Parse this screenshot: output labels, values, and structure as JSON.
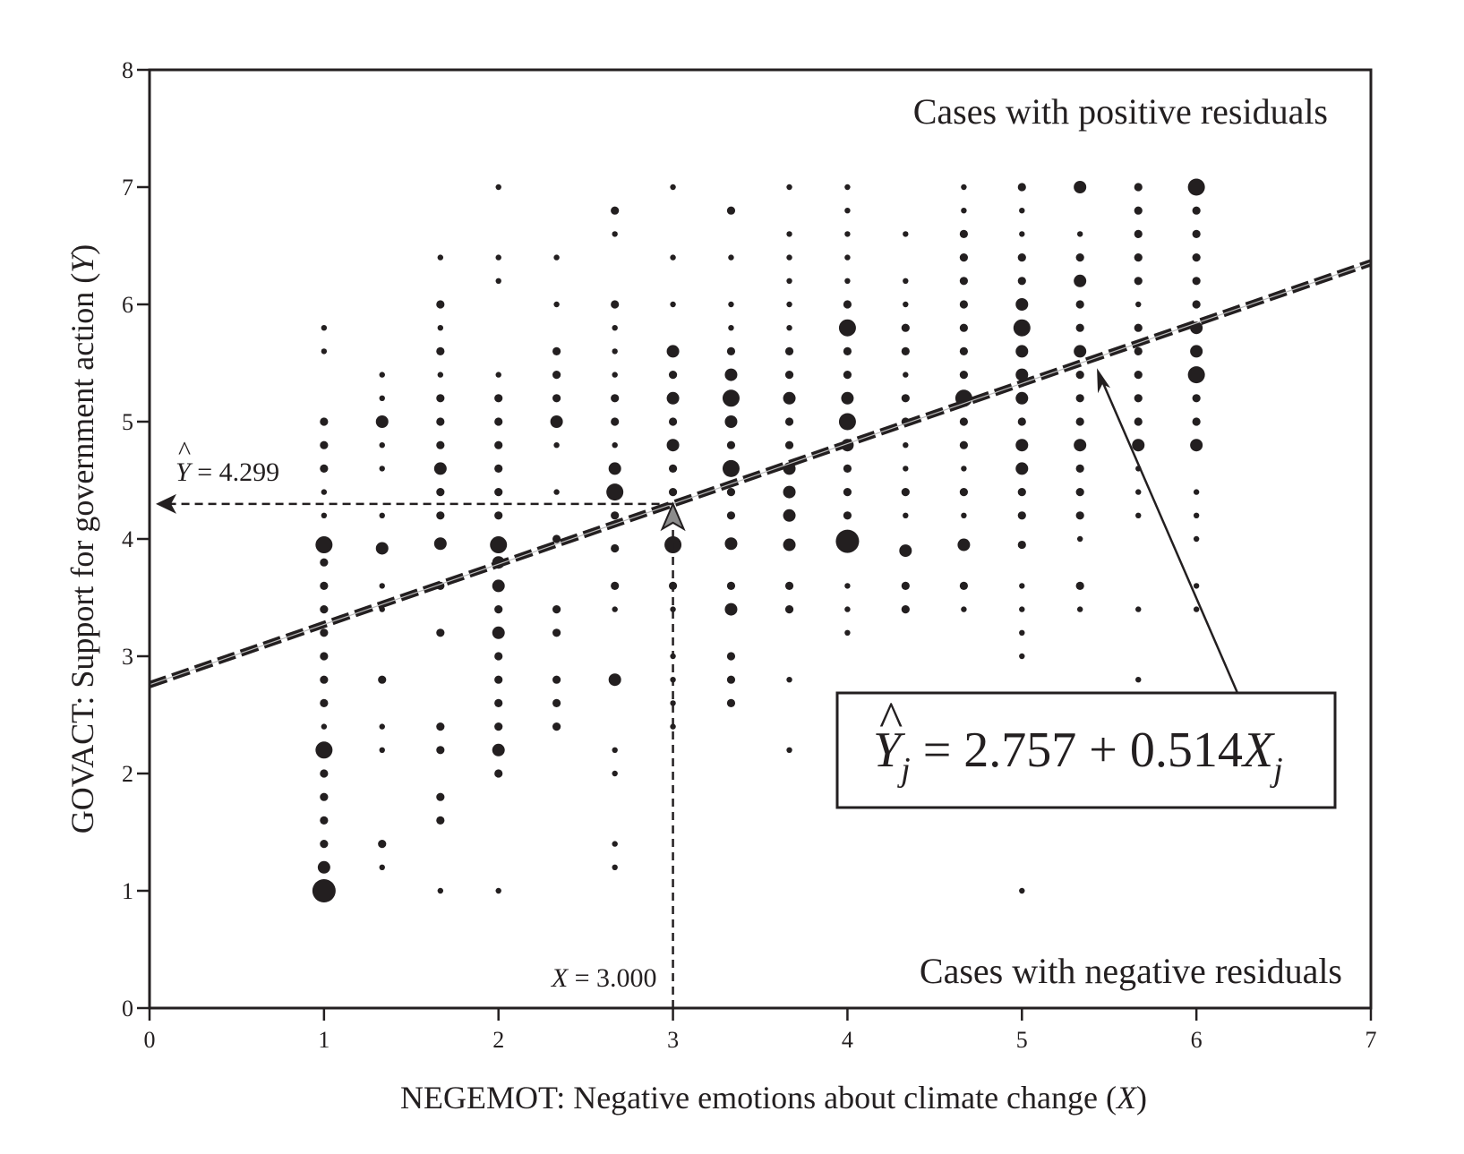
{
  "chart_data": {
    "type": "scatter",
    "xlabel": {
      "main": "NEGEMOT: Negative emotions about climate change (",
      "var": "X",
      "close": ")"
    },
    "ylabel": {
      "main": "GOVACT: Support for government action (",
      "var": "Y",
      "close": ")"
    },
    "xlim": [
      0,
      7
    ],
    "ylim": [
      0,
      8
    ],
    "xticks": [
      "0",
      "1",
      "2",
      "3",
      "4",
      "5",
      "6",
      "7"
    ],
    "yticks": [
      "0",
      "1",
      "2",
      "3",
      "4",
      "5",
      "6",
      "7",
      "8"
    ],
    "grid": false,
    "regression": {
      "intercept": 2.757,
      "slope": 0.514,
      "equation": {
        "yhat": "Y",
        "sub": "j",
        "eq": " = 2.757 + 0.514",
        "xvar": "X",
        "xsub": "j"
      }
    },
    "annotations": {
      "positive": "Cases with positive residuals",
      "negative": "Cases with negative residuals",
      "yhat_label": {
        "var": "Y",
        "text": " = 4.299",
        "value": 4.299
      },
      "x_label": {
        "var": "X",
        "text": " = 3.000",
        "value": 3.0
      }
    },
    "point_size_note": "marker size proportional to number of cases (1 = small ... 5 = largest)",
    "columns": [
      {
        "x": 1.0,
        "points": [
          [
            5.8,
            1
          ],
          [
            5.6,
            1
          ],
          [
            5.0,
            2
          ],
          [
            4.8,
            2
          ],
          [
            4.6,
            2
          ],
          [
            4.4,
            1
          ],
          [
            4.2,
            1
          ],
          [
            3.95,
            4
          ],
          [
            3.8,
            2
          ],
          [
            3.6,
            2
          ],
          [
            3.4,
            2
          ],
          [
            3.2,
            2
          ],
          [
            3.0,
            2
          ],
          [
            2.8,
            2
          ],
          [
            2.6,
            2
          ],
          [
            2.4,
            1
          ],
          [
            2.2,
            4
          ],
          [
            2.0,
            2
          ],
          [
            1.8,
            2
          ],
          [
            1.6,
            2
          ],
          [
            1.4,
            2
          ],
          [
            1.2,
            3
          ],
          [
            1.0,
            5
          ]
        ]
      },
      {
        "x": 1.333,
        "points": [
          [
            5.4,
            1
          ],
          [
            5.2,
            1
          ],
          [
            5.0,
            3
          ],
          [
            4.8,
            1
          ],
          [
            4.6,
            1
          ],
          [
            4.2,
            1
          ],
          [
            3.92,
            3
          ],
          [
            3.6,
            1
          ],
          [
            3.4,
            1
          ],
          [
            2.8,
            2
          ],
          [
            2.4,
            1
          ],
          [
            2.2,
            1
          ],
          [
            1.4,
            2
          ],
          [
            1.2,
            1
          ]
        ]
      },
      {
        "x": 1.667,
        "points": [
          [
            6.4,
            1
          ],
          [
            6.0,
            2
          ],
          [
            5.8,
            1
          ],
          [
            5.6,
            2
          ],
          [
            5.4,
            1
          ],
          [
            5.2,
            2
          ],
          [
            5.0,
            2
          ],
          [
            4.8,
            2
          ],
          [
            4.6,
            3
          ],
          [
            4.4,
            2
          ],
          [
            4.2,
            2
          ],
          [
            3.96,
            3
          ],
          [
            3.6,
            2
          ],
          [
            3.2,
            2
          ],
          [
            2.4,
            2
          ],
          [
            2.2,
            2
          ],
          [
            1.8,
            2
          ],
          [
            1.6,
            2
          ],
          [
            1.0,
            1
          ]
        ]
      },
      {
        "x": 2.0,
        "points": [
          [
            7.0,
            1
          ],
          [
            6.4,
            1
          ],
          [
            6.2,
            1
          ],
          [
            5.4,
            1
          ],
          [
            5.2,
            2
          ],
          [
            5.0,
            2
          ],
          [
            4.8,
            2
          ],
          [
            4.6,
            2
          ],
          [
            4.4,
            2
          ],
          [
            4.2,
            2
          ],
          [
            3.95,
            4
          ],
          [
            3.8,
            3
          ],
          [
            3.6,
            3
          ],
          [
            3.4,
            2
          ],
          [
            3.2,
            3
          ],
          [
            3.0,
            2
          ],
          [
            2.8,
            2
          ],
          [
            2.6,
            2
          ],
          [
            2.4,
            2
          ],
          [
            2.2,
            3
          ],
          [
            2.0,
            2
          ],
          [
            1.0,
            1
          ]
        ]
      },
      {
        "x": 2.333,
        "points": [
          [
            6.4,
            1
          ],
          [
            6.0,
            1
          ],
          [
            5.6,
            2
          ],
          [
            5.4,
            2
          ],
          [
            5.2,
            2
          ],
          [
            5.0,
            3
          ],
          [
            4.8,
            1
          ],
          [
            4.4,
            1
          ],
          [
            4.0,
            2
          ],
          [
            3.4,
            2
          ],
          [
            3.2,
            2
          ],
          [
            2.8,
            2
          ],
          [
            2.6,
            2
          ],
          [
            2.4,
            2
          ]
        ]
      },
      {
        "x": 2.667,
        "points": [
          [
            6.8,
            2
          ],
          [
            6.6,
            1
          ],
          [
            6.0,
            2
          ],
          [
            5.8,
            1
          ],
          [
            5.6,
            1
          ],
          [
            5.4,
            1
          ],
          [
            5.2,
            2
          ],
          [
            5.0,
            2
          ],
          [
            4.8,
            1
          ],
          [
            4.6,
            3
          ],
          [
            4.4,
            4
          ],
          [
            4.2,
            2
          ],
          [
            3.92,
            2
          ],
          [
            3.6,
            2
          ],
          [
            3.4,
            1
          ],
          [
            2.8,
            3
          ],
          [
            2.2,
            1
          ],
          [
            2.0,
            1
          ],
          [
            1.4,
            1
          ],
          [
            1.2,
            1
          ]
        ]
      },
      {
        "x": 3.0,
        "points": [
          [
            7.0,
            1
          ],
          [
            6.4,
            1
          ],
          [
            6.0,
            1
          ],
          [
            5.6,
            3
          ],
          [
            5.4,
            2
          ],
          [
            5.2,
            3
          ],
          [
            5.0,
            2
          ],
          [
            4.8,
            3
          ],
          [
            4.6,
            2
          ],
          [
            4.4,
            2
          ],
          [
            4.2,
            2
          ],
          [
            3.95,
            4
          ],
          [
            3.6,
            2
          ],
          [
            3.4,
            1
          ],
          [
            3.0,
            1
          ],
          [
            2.8,
            1
          ],
          [
            2.6,
            1
          ],
          [
            2.4,
            1
          ]
        ]
      },
      {
        "x": 3.333,
        "points": [
          [
            6.8,
            2
          ],
          [
            6.4,
            1
          ],
          [
            6.0,
            1
          ],
          [
            5.8,
            1
          ],
          [
            5.6,
            2
          ],
          [
            5.4,
            3
          ],
          [
            5.2,
            4
          ],
          [
            5.0,
            3
          ],
          [
            4.8,
            2
          ],
          [
            4.6,
            4
          ],
          [
            4.4,
            2
          ],
          [
            4.2,
            2
          ],
          [
            3.96,
            3
          ],
          [
            3.6,
            2
          ],
          [
            3.4,
            3
          ],
          [
            3.0,
            2
          ],
          [
            2.8,
            2
          ],
          [
            2.6,
            2
          ]
        ]
      },
      {
        "x": 3.667,
        "points": [
          [
            7.0,
            1
          ],
          [
            6.6,
            1
          ],
          [
            6.4,
            1
          ],
          [
            6.2,
            1
          ],
          [
            6.0,
            1
          ],
          [
            5.8,
            1
          ],
          [
            5.6,
            2
          ],
          [
            5.4,
            2
          ],
          [
            5.2,
            3
          ],
          [
            5.0,
            2
          ],
          [
            4.8,
            2
          ],
          [
            4.6,
            3
          ],
          [
            4.4,
            3
          ],
          [
            4.2,
            3
          ],
          [
            3.95,
            3
          ],
          [
            3.6,
            2
          ],
          [
            3.4,
            2
          ],
          [
            2.8,
            1
          ],
          [
            2.2,
            1
          ]
        ]
      },
      {
        "x": 4.0,
        "points": [
          [
            7.0,
            1
          ],
          [
            6.8,
            1
          ],
          [
            6.6,
            1
          ],
          [
            6.4,
            1
          ],
          [
            6.2,
            1
          ],
          [
            6.0,
            2
          ],
          [
            5.8,
            4
          ],
          [
            5.6,
            2
          ],
          [
            5.4,
            2
          ],
          [
            5.2,
            3
          ],
          [
            5.0,
            4
          ],
          [
            4.8,
            3
          ],
          [
            4.6,
            2
          ],
          [
            4.4,
            2
          ],
          [
            4.2,
            2
          ],
          [
            3.98,
            5
          ],
          [
            3.6,
            1
          ],
          [
            3.4,
            1
          ],
          [
            3.2,
            1
          ]
        ]
      },
      {
        "x": 4.333,
        "points": [
          [
            6.6,
            1
          ],
          [
            6.2,
            1
          ],
          [
            6.0,
            1
          ],
          [
            5.8,
            2
          ],
          [
            5.6,
            2
          ],
          [
            5.4,
            1
          ],
          [
            5.2,
            2
          ],
          [
            5.0,
            2
          ],
          [
            4.8,
            1
          ],
          [
            4.6,
            1
          ],
          [
            4.4,
            2
          ],
          [
            4.2,
            1
          ],
          [
            3.9,
            3
          ],
          [
            3.6,
            2
          ],
          [
            3.4,
            2
          ]
        ]
      },
      {
        "x": 4.667,
        "points": [
          [
            7.0,
            1
          ],
          [
            6.8,
            1
          ],
          [
            6.6,
            2
          ],
          [
            6.4,
            2
          ],
          [
            6.2,
            2
          ],
          [
            6.0,
            2
          ],
          [
            5.8,
            2
          ],
          [
            5.6,
            2
          ],
          [
            5.4,
            2
          ],
          [
            5.2,
            4
          ],
          [
            5.0,
            2
          ],
          [
            4.8,
            2
          ],
          [
            4.6,
            1
          ],
          [
            4.4,
            2
          ],
          [
            4.2,
            1
          ],
          [
            3.95,
            3
          ],
          [
            3.6,
            2
          ],
          [
            3.4,
            1
          ]
        ]
      },
      {
        "x": 5.0,
        "points": [
          [
            7.0,
            2
          ],
          [
            6.8,
            1
          ],
          [
            6.6,
            1
          ],
          [
            6.4,
            2
          ],
          [
            6.2,
            2
          ],
          [
            6.0,
            3
          ],
          [
            5.8,
            4
          ],
          [
            5.6,
            3
          ],
          [
            5.4,
            3
          ],
          [
            5.2,
            3
          ],
          [
            5.0,
            2
          ],
          [
            4.8,
            3
          ],
          [
            4.6,
            3
          ],
          [
            4.4,
            2
          ],
          [
            4.2,
            2
          ],
          [
            3.95,
            2
          ],
          [
            3.6,
            1
          ],
          [
            3.4,
            1
          ],
          [
            3.2,
            1
          ],
          [
            3.0,
            1
          ],
          [
            1.0,
            1
          ]
        ]
      },
      {
        "x": 5.333,
        "points": [
          [
            7.0,
            3
          ],
          [
            6.6,
            1
          ],
          [
            6.4,
            2
          ],
          [
            6.2,
            3
          ],
          [
            6.0,
            2
          ],
          [
            5.8,
            2
          ],
          [
            5.6,
            3
          ],
          [
            5.4,
            2
          ],
          [
            5.2,
            2
          ],
          [
            5.0,
            2
          ],
          [
            4.8,
            3
          ],
          [
            4.6,
            2
          ],
          [
            4.4,
            2
          ],
          [
            4.2,
            2
          ],
          [
            4.0,
            1
          ],
          [
            3.6,
            2
          ],
          [
            3.4,
            1
          ]
        ]
      },
      {
        "x": 5.667,
        "points": [
          [
            7.0,
            2
          ],
          [
            6.8,
            2
          ],
          [
            6.6,
            2
          ],
          [
            6.4,
            2
          ],
          [
            6.2,
            2
          ],
          [
            6.0,
            1
          ],
          [
            5.8,
            2
          ],
          [
            5.6,
            2
          ],
          [
            5.4,
            2
          ],
          [
            5.2,
            2
          ],
          [
            5.0,
            2
          ],
          [
            4.8,
            3
          ],
          [
            4.6,
            1
          ],
          [
            4.4,
            1
          ],
          [
            4.2,
            1
          ],
          [
            3.4,
            1
          ],
          [
            2.8,
            1
          ]
        ]
      },
      {
        "x": 6.0,
        "points": [
          [
            7.0,
            4
          ],
          [
            6.8,
            2
          ],
          [
            6.6,
            2
          ],
          [
            6.4,
            2
          ],
          [
            6.2,
            2
          ],
          [
            6.0,
            2
          ],
          [
            5.8,
            3
          ],
          [
            5.6,
            3
          ],
          [
            5.4,
            4
          ],
          [
            5.2,
            2
          ],
          [
            5.0,
            2
          ],
          [
            4.8,
            3
          ],
          [
            4.4,
            1
          ],
          [
            4.2,
            1
          ],
          [
            4.0,
            1
          ],
          [
            3.6,
            1
          ],
          [
            3.4,
            1
          ]
        ]
      }
    ]
  }
}
